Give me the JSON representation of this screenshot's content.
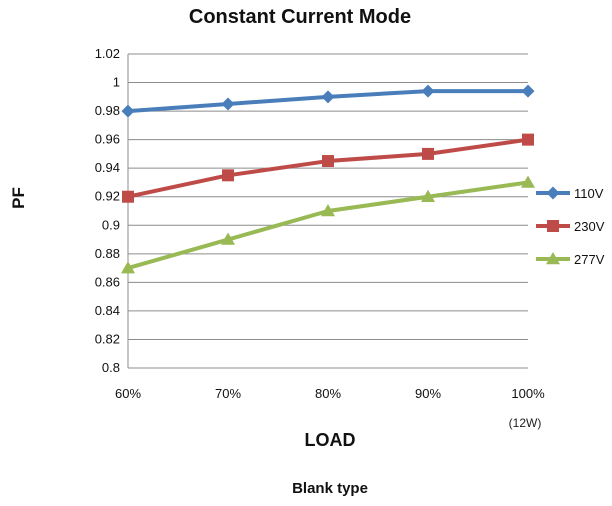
{
  "chart_data": {
    "type": "line",
    "title": "Constant Current Mode",
    "xlabel": "LOAD",
    "ylabel": "PF",
    "categories": [
      "60%",
      "70%",
      "80%",
      "90%",
      "100%"
    ],
    "category_note": "(12W)",
    "ylim": [
      0.8,
      1.02
    ],
    "yticks": [
      0.8,
      0.82,
      0.84,
      0.86,
      0.88,
      0.9,
      0.92,
      0.94,
      0.96,
      0.98,
      1,
      1.02
    ],
    "ytick_labels": [
      "0.8",
      "0.82",
      "0.84",
      "0.86",
      "0.88",
      "0.9",
      "0.92",
      "0.94",
      "0.96",
      "0.98",
      "1",
      "1.02"
    ],
    "grid": true,
    "legend": "right",
    "series": [
      {
        "name": "110V",
        "color": "#4a7ebb",
        "marker": "diamond",
        "values": [
          0.98,
          0.985,
          0.99,
          0.994,
          0.994
        ]
      },
      {
        "name": "230V",
        "color": "#be4b48",
        "marker": "square",
        "values": [
          0.92,
          0.935,
          0.945,
          0.95,
          0.96
        ]
      },
      {
        "name": "277V",
        "color": "#98b954",
        "marker": "triangle",
        "values": [
          0.87,
          0.89,
          0.91,
          0.92,
          0.93
        ]
      }
    ]
  },
  "footer": "Blank type"
}
